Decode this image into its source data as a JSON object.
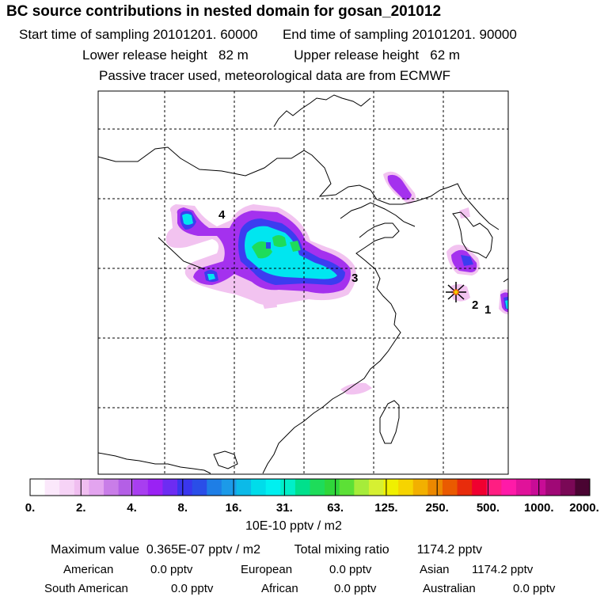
{
  "header": {
    "title": "BC  source contributions in nested domain for gosan_201012",
    "start_label": "Start time of sampling",
    "start_value": "20101201. 60000",
    "end_label": "End time of sampling",
    "end_value": "20101201. 90000",
    "lower_label": "Lower release height",
    "lower_value": "82 m",
    "upper_label": "Upper release height",
    "upper_value": "62 m",
    "note": "Passive tracer used, meteorological data are from ECMWF"
  },
  "chart_data": {
    "type": "heatmap",
    "colorbar": {
      "tick_labels": [
        "0.",
        "2.",
        "4.",
        "8.",
        "16.",
        "31.",
        "63.",
        "125.",
        "250.",
        "500.",
        "1000.",
        "2000."
      ],
      "units": "10E-10 pptv / m2",
      "colors": [
        "#ffffff",
        "#fbe8fb",
        "#f6d3f6",
        "#f0bef0",
        "#e3a4ef",
        "#c97de8",
        "#b45fe6",
        "#a83ef0",
        "#9a22f4",
        "#6d2cf2",
        "#3a36ee",
        "#2a4ee8",
        "#1e7ee6",
        "#1c9ae8",
        "#0cbae8",
        "#00dcea",
        "#00f0f0",
        "#00efc8",
        "#00e08c",
        "#1edc5a",
        "#2fd63a",
        "#5ce036",
        "#a6ec3a",
        "#d6f032",
        "#f0f000",
        "#f6d400",
        "#f2b000",
        "#ec8800",
        "#ea5a00",
        "#e82c0c",
        "#f00030",
        "#ff1e82",
        "#ff1aa8",
        "#e0129a",
        "#c80c96",
        "#a00876",
        "#7a0856",
        "#4a0432"
      ]
    },
    "source_labels": [
      "4",
      "3",
      "2",
      "1"
    ],
    "summary": {
      "max_label": "Maximum value",
      "max_value": "0.365E-07 pptv / m2",
      "total_label": "Total mixing ratio",
      "total_value": "1174.2 pptv"
    },
    "contributions": [
      {
        "name": "American",
        "value": "0.0 pptv"
      },
      {
        "name": "European",
        "value": "0.0 pptv"
      },
      {
        "name": "Asian",
        "value": "1174.2 pptv"
      },
      {
        "name": "South American",
        "value": "0.0 pptv"
      },
      {
        "name": "African",
        "value": "0.0 pptv"
      },
      {
        "name": "Australian",
        "value": "0.0 pptv"
      }
    ]
  }
}
